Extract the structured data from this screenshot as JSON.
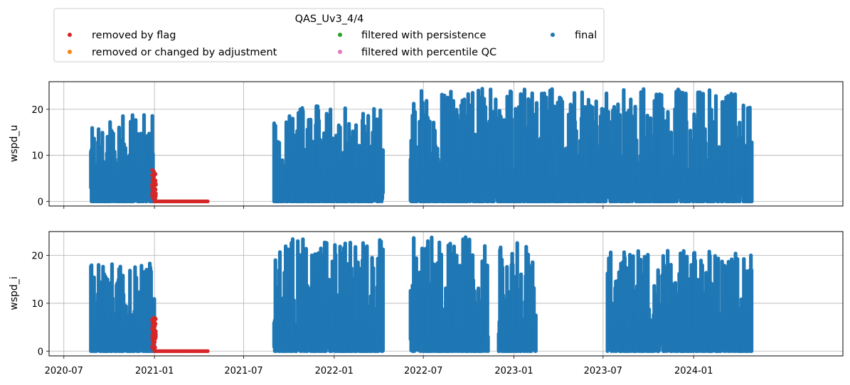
{
  "chart_data": {
    "type": "scatter",
    "legend": {
      "title": "QAS_Uv3_4/4",
      "placement": "top",
      "ncol": 3,
      "entries": [
        {
          "label": "removed by flag",
          "color": "#d62728"
        },
        {
          "label": "removed or changed by adjustment",
          "color": "#ff7f0e"
        },
        {
          "label": "filtered with persistence",
          "color": "#2ca02c"
        },
        {
          "label": "filtered with percentile QC",
          "color": "#e377c2"
        },
        {
          "label": "final",
          "color": "#1f77b4"
        }
      ]
    },
    "x_axis": {
      "type": "date",
      "range": [
        "2020-06-01",
        "2024-10-30"
      ],
      "ticks": [
        "2020-07",
        "2021-01",
        "2021-07",
        "2022-01",
        "2022-07",
        "2023-01",
        "2023-07",
        "2024-01"
      ],
      "grid": true
    },
    "panels": [
      {
        "ylabel": "wspd_u",
        "ylim": [
          -1,
          26
        ],
        "yticks": [
          0,
          10,
          20
        ],
        "grid": true,
        "series": [
          {
            "legend_entry": "removed by flag",
            "color": "#d62728",
            "segments": [
              {
                "x_start": "2021-01-01",
                "x_end": "2021-04-20",
                "y": 0
              },
              {
                "x_start": "2020-12-27",
                "x_end": "2021-01-04",
                "y_min": 0,
                "y_max": 7
              }
            ]
          },
          {
            "legend_entry": "final",
            "color": "#1f77b4",
            "segments": [
              {
                "x_start": "2020-08-25",
                "x_end": "2021-01-01",
                "y_min": 0,
                "y_max": 19
              },
              {
                "x_start": "2021-09-01",
                "x_end": "2022-04-10",
                "y_min": 0,
                "y_max": 21
              },
              {
                "x_start": "2022-06-05",
                "x_end": "2024-04-28",
                "y_min": 0,
                "y_max": 24.5
              }
            ]
          }
        ]
      },
      {
        "ylabel": "wspd_i",
        "ylim": [
          -1,
          25
        ],
        "yticks": [
          0,
          10,
          20
        ],
        "grid": true,
        "series": [
          {
            "legend_entry": "removed by flag",
            "color": "#d62728",
            "segments": [
              {
                "x_start": "2021-01-01",
                "x_end": "2021-04-20",
                "y": 0
              },
              {
                "x_start": "2020-12-27",
                "x_end": "2021-01-04",
                "y_min": 0,
                "y_max": 7
              }
            ]
          },
          {
            "legend_entry": "final",
            "color": "#1f77b4",
            "segments": [
              {
                "x_start": "2020-08-25",
                "x_end": "2021-01-01",
                "y_min": 0,
                "y_max": 18.5
              },
              {
                "x_start": "2021-09-01",
                "x_end": "2022-04-10",
                "y_min": 0,
                "y_max": 23.5
              },
              {
                "x_start": "2022-06-05",
                "x_end": "2022-11-10",
                "y_min": 0,
                "y_max": 24
              },
              {
                "x_start": "2022-12-01",
                "x_end": "2023-02-15",
                "y_min": 0,
                "y_max": 23.5
              },
              {
                "x_start": "2023-07-10",
                "x_end": "2024-04-28",
                "y_min": 0,
                "y_max": 21
              }
            ]
          }
        ]
      }
    ]
  }
}
